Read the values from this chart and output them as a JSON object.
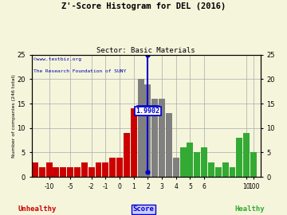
{
  "title": "Z'-Score Histogram for DEL (2016)",
  "subtitle": "Sector: Basic Materials",
  "watermark1": "©www.textbiz.org",
  "watermark2": "The Research Foundation of SUNY",
  "marker_value": 2,
  "marker_label": "1.9902",
  "ylim": [
    0,
    25
  ],
  "yticks": [
    0,
    5,
    10,
    15,
    20,
    25
  ],
  "unhealthy_color": "#cc0000",
  "gray_color": "#808080",
  "healthy_color": "#33aa33",
  "marker_color": "#0000cc",
  "background_color": "#f5f5dc",
  "grid_color": "#aaaaaa",
  "bars": [
    {
      "x": 0,
      "height": 3,
      "color": "#cc0000"
    },
    {
      "x": 1,
      "height": 2,
      "color": "#cc0000"
    },
    {
      "x": 2,
      "height": 3,
      "color": "#cc0000"
    },
    {
      "x": 3,
      "height": 2,
      "color": "#cc0000"
    },
    {
      "x": 4,
      "height": 2,
      "color": "#cc0000"
    },
    {
      "x": 5,
      "height": 2,
      "color": "#cc0000"
    },
    {
      "x": 6,
      "height": 2,
      "color": "#cc0000"
    },
    {
      "x": 7,
      "height": 3,
      "color": "#cc0000"
    },
    {
      "x": 8,
      "height": 2,
      "color": "#cc0000"
    },
    {
      "x": 9,
      "height": 3,
      "color": "#cc0000"
    },
    {
      "x": 10,
      "height": 3,
      "color": "#cc0000"
    },
    {
      "x": 11,
      "height": 4,
      "color": "#cc0000"
    },
    {
      "x": 12,
      "height": 4,
      "color": "#cc0000"
    },
    {
      "x": 13,
      "height": 9,
      "color": "#cc0000"
    },
    {
      "x": 14,
      "height": 14,
      "color": "#cc0000"
    },
    {
      "x": 15,
      "height": 20,
      "color": "#808080"
    },
    {
      "x": 16,
      "height": 19,
      "color": "#808080"
    },
    {
      "x": 17,
      "height": 16,
      "color": "#808080"
    },
    {
      "x": 18,
      "height": 16,
      "color": "#808080"
    },
    {
      "x": 19,
      "height": 13,
      "color": "#808080"
    },
    {
      "x": 20,
      "height": 4,
      "color": "#808080"
    },
    {
      "x": 21,
      "height": 6,
      "color": "#33aa33"
    },
    {
      "x": 22,
      "height": 7,
      "color": "#33aa33"
    },
    {
      "x": 23,
      "height": 5,
      "color": "#33aa33"
    },
    {
      "x": 24,
      "height": 6,
      "color": "#33aa33"
    },
    {
      "x": 25,
      "height": 3,
      "color": "#33aa33"
    },
    {
      "x": 26,
      "height": 2,
      "color": "#33aa33"
    },
    {
      "x": 27,
      "height": 3,
      "color": "#33aa33"
    },
    {
      "x": 28,
      "height": 2,
      "color": "#33aa33"
    },
    {
      "x": 29,
      "height": 8,
      "color": "#33aa33"
    },
    {
      "x": 30,
      "height": 9,
      "color": "#33aa33"
    },
    {
      "x": 31,
      "height": 5,
      "color": "#33aa33"
    }
  ],
  "xtick_positions": [
    2,
    5,
    8,
    10,
    12,
    14,
    16,
    18,
    20,
    22,
    24,
    30,
    31
  ],
  "xtick_labels": [
    "-10",
    "-5",
    "-2",
    "-1",
    "0",
    "1",
    "2",
    "3",
    "4",
    "5",
    "6",
    "10",
    "100"
  ],
  "unhealthy_label": "Unhealthy",
  "healthy_label": "Healthy",
  "score_label": "Score",
  "marker_x": 16
}
